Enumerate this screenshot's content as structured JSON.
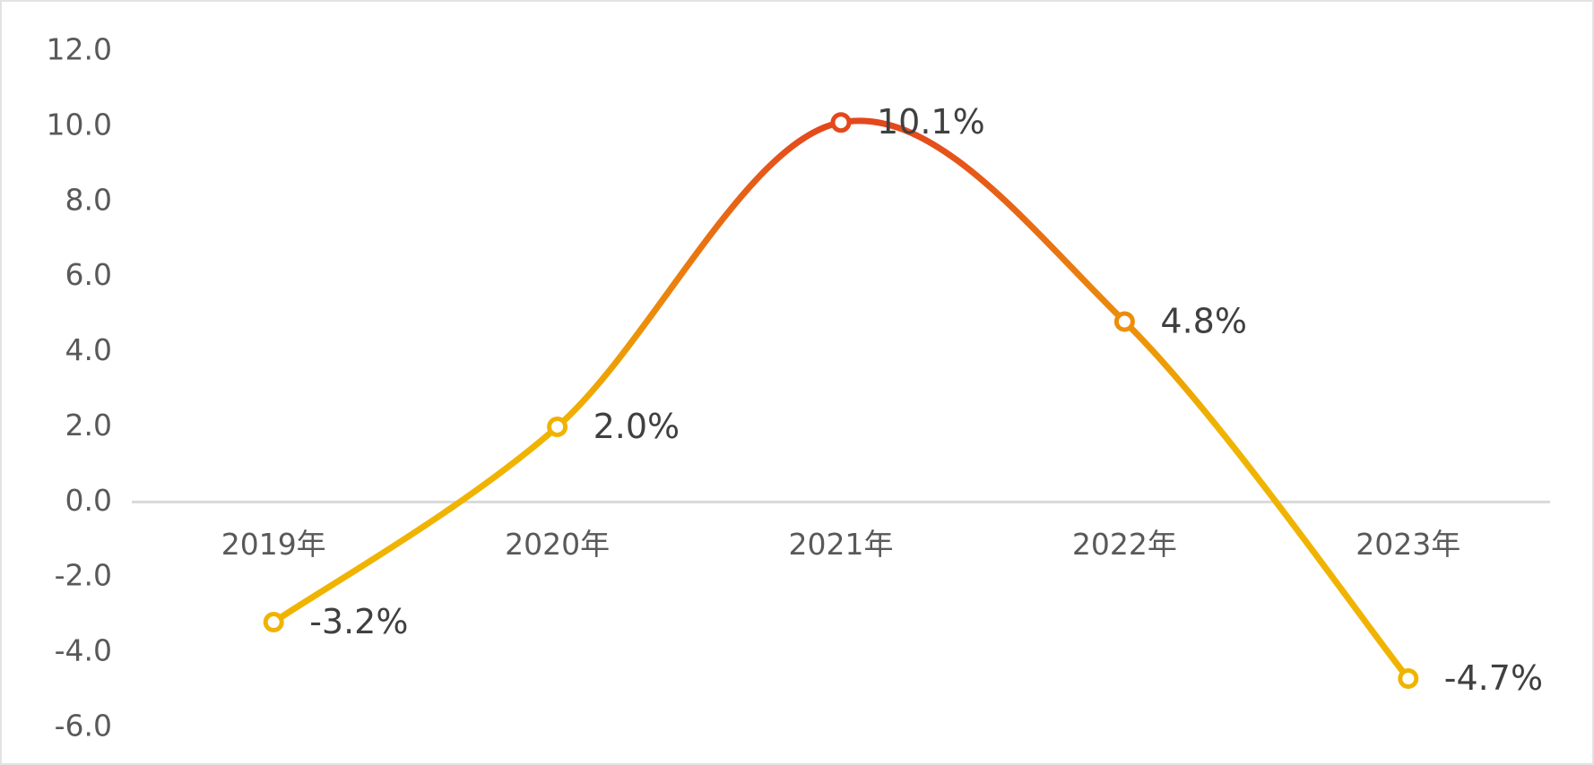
{
  "chart_data": {
    "type": "line",
    "categories": [
      "2019年",
      "2020年",
      "2021年",
      "2022年",
      "2023年"
    ],
    "series": [
      {
        "color": "#f0b400",
        "gradient_color": "#e4471c",
        "values": [
          -3.2,
          2.0,
          10.1,
          4.8,
          -4.7
        ],
        "value_labels": [
          "-3.2%",
          "2.0%",
          "10.1%",
          "4.8%",
          "-4.7%"
        ]
      }
    ],
    "ylim": [
      -6,
      12
    ],
    "yticks": [
      {
        "value": -6,
        "label": "-6.0"
      },
      {
        "value": -4,
        "label": "-4.0"
      },
      {
        "value": -2,
        "label": "-2.0"
      },
      {
        "value": 0,
        "label": "0.0"
      },
      {
        "value": 2,
        "label": "2.0"
      },
      {
        "value": 4,
        "label": "4.0"
      },
      {
        "value": 6,
        "label": "6.0"
      },
      {
        "value": 8,
        "label": "8.0"
      },
      {
        "value": 10,
        "label": "10.0"
      },
      {
        "value": 12,
        "label": "12.0"
      }
    ],
    "smooth": true
  }
}
